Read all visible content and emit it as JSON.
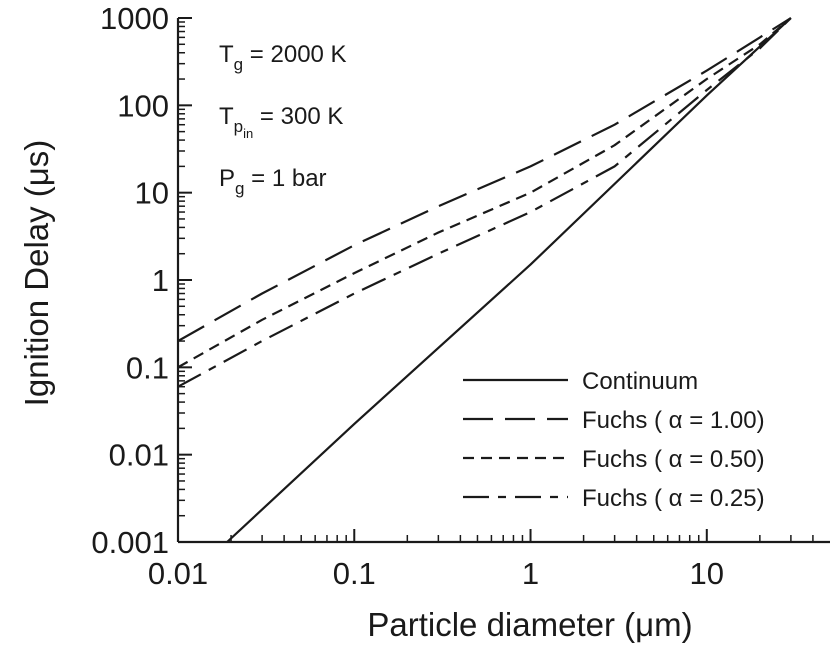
{
  "chart_data": {
    "type": "line",
    "xlabel": "Particle diameter (μm)",
    "ylabel": "Ignition Delay (μs)",
    "xscale": "log",
    "yscale": "log",
    "xlim": [
      0.01,
      50
    ],
    "ylim": [
      0.001,
      1000
    ],
    "x_ticks": [
      "0.01",
      "0.1",
      "1",
      "10"
    ],
    "y_ticks": [
      "0.001",
      "0.01",
      "0.1",
      "1",
      "10",
      "100",
      "1000"
    ],
    "grid": false,
    "legend_position": "bottom-right",
    "annotations": [
      {
        "base": "T",
        "sub": "g",
        "subsub": "",
        "text": " = 2000 K"
      },
      {
        "base": "T",
        "sub": "p",
        "subsub": "in",
        "text": " =  300  K"
      },
      {
        "base": "P",
        "sub": "g",
        "subsub": "",
        "text": " = 1 bar"
      }
    ],
    "series": [
      {
        "name": "Continuum",
        "dash": "solid",
        "x": [
          0.019,
          0.1,
          1,
          10,
          30
        ],
        "y": [
          0.001,
          0.0225,
          1.5,
          130,
          1000
        ]
      },
      {
        "name": "Fuchs ( α = 1.00)",
        "dash": "long",
        "x": [
          0.01,
          0.03,
          0.1,
          0.3,
          1,
          3,
          10,
          20,
          30
        ],
        "y": [
          0.2,
          0.7,
          2.5,
          7,
          20,
          60,
          250,
          600,
          1000
        ]
      },
      {
        "name": "Fuchs ( α = 0.50)",
        "dash": "short",
        "x": [
          0.01,
          0.03,
          0.1,
          0.3,
          1,
          3,
          10,
          20,
          30
        ],
        "y": [
          0.1,
          0.35,
          1.2,
          3.5,
          10,
          35,
          200,
          500,
          1000
        ]
      },
      {
        "name": "Fuchs ( α = 0.25)",
        "dash": "longshort",
        "x": [
          0.01,
          0.03,
          0.1,
          0.3,
          1,
          3,
          10,
          20,
          30
        ],
        "y": [
          0.06,
          0.2,
          0.7,
          2,
          6,
          20,
          150,
          450,
          1000
        ]
      }
    ]
  }
}
